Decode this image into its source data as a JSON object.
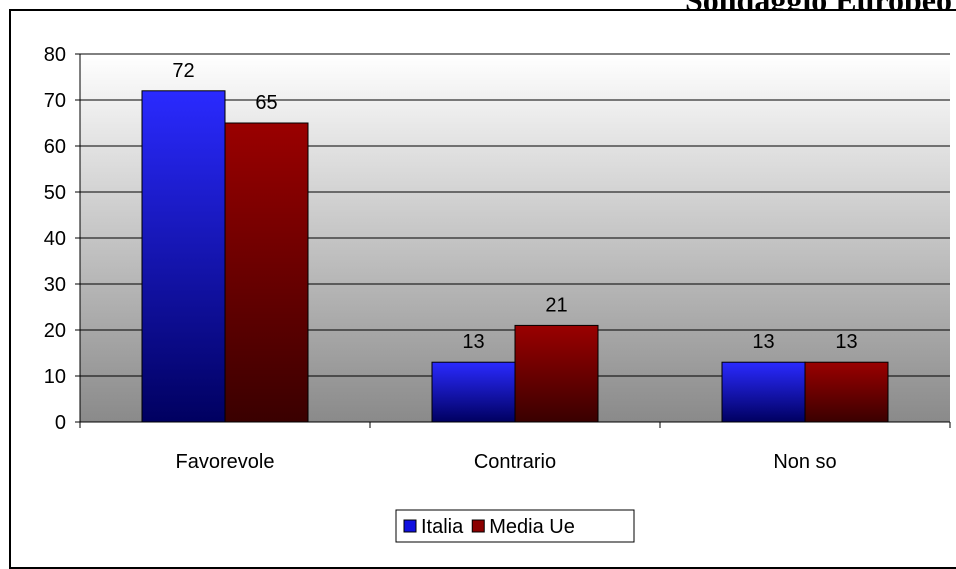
{
  "header": {
    "cut_title": "Sondaggio Europeo"
  },
  "colors": {
    "italia": "#1010e0",
    "media_ue": "#8b0000",
    "plot_top": "#ffffff",
    "plot_bottom": "#8a8a8a"
  },
  "chart_data": {
    "type": "bar",
    "title": "",
    "xlabel": "",
    "ylabel": "",
    "categories": [
      "Favorevole",
      "Contrario",
      "Non so"
    ],
    "series": [
      {
        "name": "Italia",
        "values": [
          72,
          13,
          13
        ]
      },
      {
        "name": "Media Ue",
        "values": [
          65,
          21,
          13
        ]
      }
    ],
    "ylim": [
      0,
      80
    ],
    "yticks": [
      0,
      10,
      20,
      30,
      40,
      50,
      60,
      70,
      80
    ],
    "data_labels": true,
    "grid": true,
    "legend": "bottom"
  }
}
